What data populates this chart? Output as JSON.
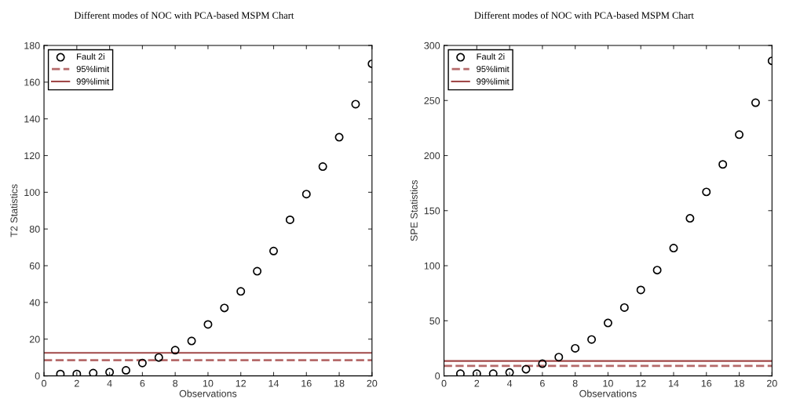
{
  "chart_data": [
    {
      "type": "scatter",
      "title": "Different modes of NOC with PCA-based MSPM Chart",
      "xlabel": "Observations",
      "ylabel": "T2 Statistics",
      "x": [
        1,
        2,
        3,
        4,
        5,
        6,
        7,
        8,
        9,
        10,
        11,
        12,
        13,
        14,
        15,
        16,
        17,
        18,
        19,
        20
      ],
      "series": [
        {
          "name": "Fault 2i",
          "color": "#000000",
          "values": [
            1,
            1,
            1.5,
            2,
            3,
            7,
            10,
            14,
            19,
            28,
            37,
            46,
            57,
            68,
            85,
            99,
            114,
            130,
            148,
            170
          ]
        }
      ],
      "ref_lines": [
        {
          "axis": "y",
          "value": 8.5,
          "label": "95%limit",
          "color": "#b56a6a",
          "line_style": "dashed"
        },
        {
          "axis": "y",
          "value": 12.5,
          "label": "99%limit",
          "color": "#a04848",
          "line_style": "solid"
        }
      ],
      "xlim": [
        0,
        20
      ],
      "xticks": [
        0,
        2,
        4,
        6,
        8,
        10,
        12,
        14,
        16,
        18,
        20
      ],
      "ylim": [
        0,
        180
      ],
      "yticks": [
        0,
        20,
        40,
        60,
        80,
        100,
        120,
        140,
        160,
        180
      ],
      "marker": "circle",
      "legend": "top left",
      "grid": false
    },
    {
      "type": "scatter",
      "title": "Different modes of NOC with PCA-based MSPM Chart",
      "xlabel": "Observations",
      "ylabel": "SPE Statistics",
      "x": [
        1,
        2,
        3,
        4,
        5,
        6,
        7,
        8,
        9,
        10,
        11,
        12,
        13,
        14,
        15,
        16,
        17,
        18,
        19,
        20
      ],
      "series": [
        {
          "name": "Fault 2i",
          "color": "#000000",
          "values": [
            2,
            2,
            2,
            3,
            6,
            11,
            17,
            25,
            33,
            48,
            62,
            78,
            96,
            116,
            143,
            167,
            192,
            219,
            248,
            286
          ]
        }
      ],
      "ref_lines": [
        {
          "axis": "y",
          "value": 9,
          "label": "95%limit",
          "color": "#b56a6a",
          "line_style": "dashed"
        },
        {
          "axis": "y",
          "value": 13.5,
          "label": "99%limit",
          "color": "#a04848",
          "line_style": "solid"
        }
      ],
      "xlim": [
        0,
        20
      ],
      "xticks": [
        0,
        2,
        4,
        6,
        8,
        10,
        12,
        14,
        16,
        18,
        20
      ],
      "ylim": [
        0,
        300
      ],
      "yticks": [
        0,
        50,
        100,
        150,
        200,
        250,
        300
      ],
      "marker": "circle",
      "legend": "top left",
      "grid": false
    }
  ]
}
